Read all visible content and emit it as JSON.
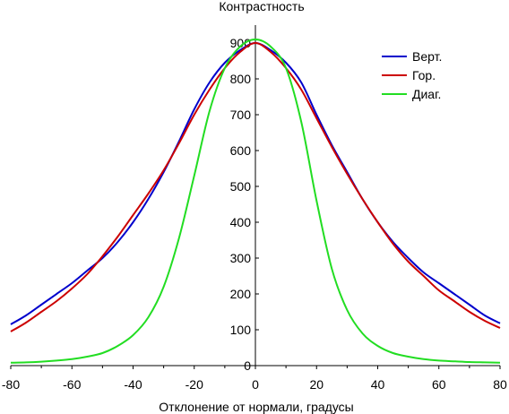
{
  "chart_data": {
    "type": "line",
    "title": "Контрастность",
    "xlabel": "Отклонение от нормали, градусы",
    "ylabel": "",
    "xlim": [
      -80,
      80
    ],
    "ylim": [
      0,
      900
    ],
    "xticks": [
      -80,
      -60,
      -40,
      -20,
      0,
      20,
      40,
      60,
      80
    ],
    "yticks": [
      0,
      100,
      200,
      300,
      400,
      500,
      600,
      700,
      800,
      900
    ],
    "grid": false,
    "legend_position": "top-right",
    "series": [
      {
        "name": "Верт.",
        "color": "#0000cc",
        "x": [
          -80,
          -75,
          -70,
          -65,
          -60,
          -55,
          -50,
          -45,
          -40,
          -35,
          -30,
          -25,
          -20,
          -15,
          -10,
          -5,
          0,
          5,
          10,
          15,
          20,
          25,
          30,
          35,
          40,
          45,
          50,
          55,
          60,
          65,
          70,
          75,
          80
        ],
        "y": [
          115,
          140,
          170,
          200,
          230,
          265,
          300,
          345,
          400,
          465,
          540,
          625,
          715,
          790,
          845,
          880,
          900,
          880,
          845,
          790,
          700,
          615,
          540,
          465,
          400,
          345,
          300,
          260,
          230,
          200,
          170,
          140,
          118
        ]
      },
      {
        "name": "Гор.",
        "color": "#cc0000",
        "x": [
          -80,
          -75,
          -70,
          -65,
          -60,
          -55,
          -50,
          -45,
          -40,
          -35,
          -30,
          -25,
          -20,
          -15,
          -10,
          -5,
          0,
          5,
          10,
          15,
          20,
          25,
          30,
          35,
          40,
          45,
          50,
          55,
          60,
          65,
          70,
          75,
          80
        ],
        "y": [
          95,
          120,
          150,
          180,
          215,
          255,
          305,
          360,
          420,
          480,
          545,
          620,
          700,
          770,
          830,
          875,
          900,
          875,
          830,
          770,
          690,
          610,
          535,
          465,
          400,
          340,
          290,
          250,
          210,
          180,
          150,
          125,
          105
        ]
      },
      {
        "name": "Диаг.",
        "color": "#22dd22",
        "x": [
          -80,
          -75,
          -70,
          -65,
          -60,
          -55,
          -50,
          -45,
          -40,
          -35,
          -30,
          -25,
          -20,
          -15,
          -10,
          -5,
          0,
          5,
          10,
          15,
          20,
          25,
          30,
          35,
          40,
          45,
          50,
          55,
          60,
          65,
          70,
          75,
          80
        ],
        "y": [
          8,
          9,
          11,
          14,
          18,
          25,
          35,
          55,
          85,
          135,
          220,
          355,
          530,
          710,
          830,
          890,
          910,
          890,
          830,
          680,
          460,
          270,
          155,
          90,
          55,
          35,
          25,
          18,
          14,
          12,
          10,
          9,
          8
        ]
      }
    ]
  }
}
